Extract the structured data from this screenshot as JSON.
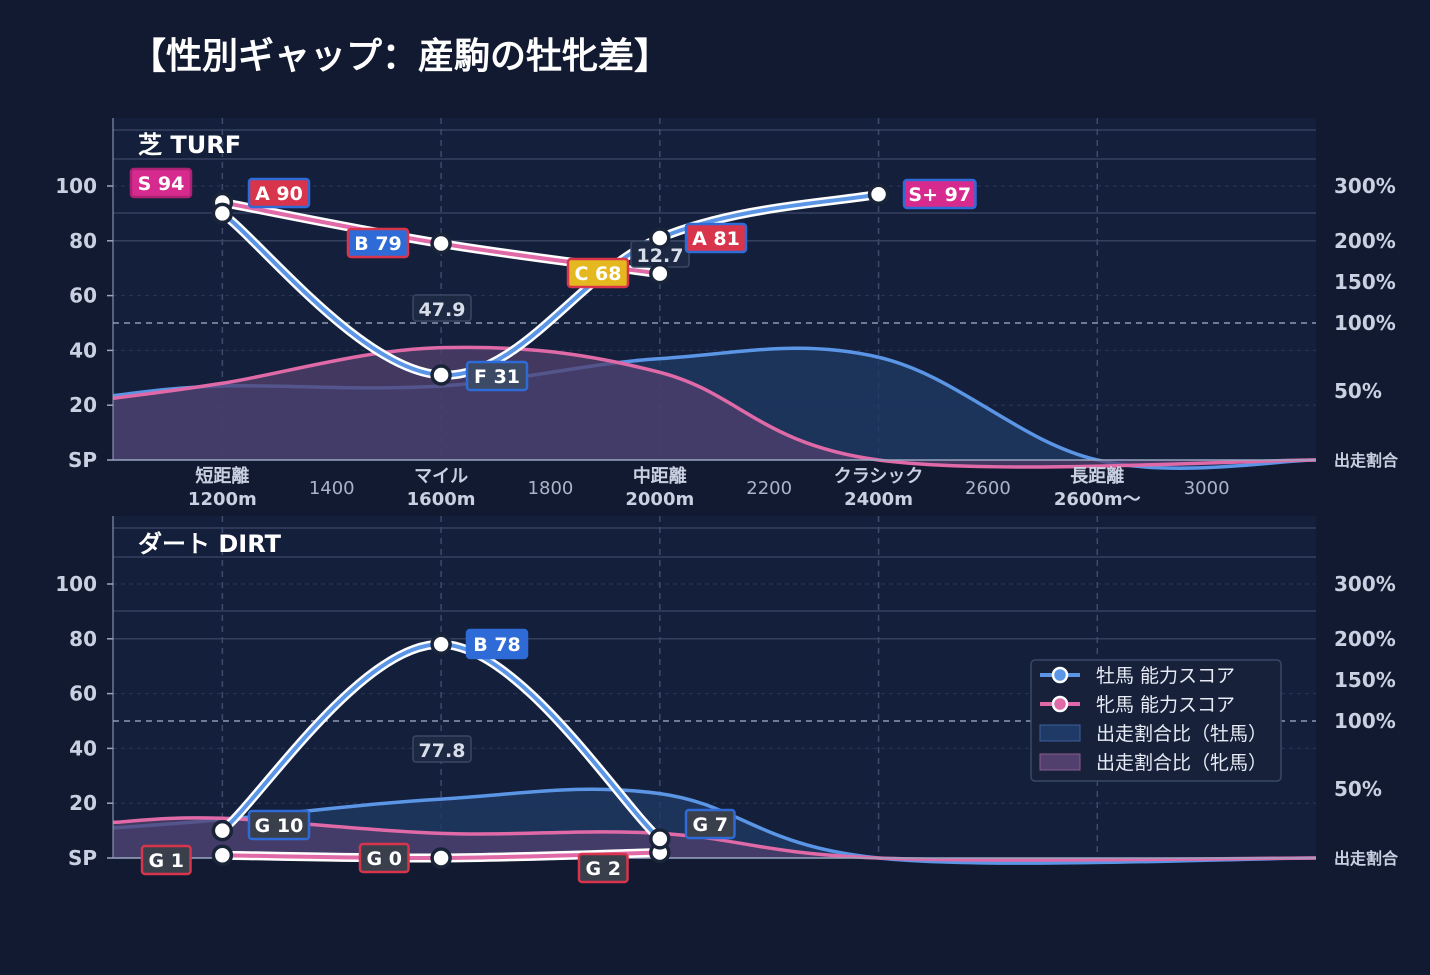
{
  "title": "【性別ギャップ：産駒の牡牝差】",
  "colors": {
    "background": "#111a30",
    "panel": "#14203b",
    "male_line": "#5b95e6",
    "female_line": "#e06aa8",
    "male_area": "#1f3a66",
    "female_area": "#51406e",
    "rank_S": "#d62a8f",
    "rank_A": "#d8344c",
    "rank_B": "#2e6bd6",
    "rank_C": "#e6b820",
    "rank_F": "#3c4a66",
    "rank_G": "#3a3f4c"
  },
  "x_categories": [
    {
      "top": "短距離",
      "bottom": "1200m"
    },
    {
      "top": "マイル",
      "bottom": "1600m"
    },
    {
      "top": "中距離",
      "bottom": "2000m"
    },
    {
      "top": "クラシック",
      "bottom": "2400m"
    },
    {
      "top": "長距離",
      "bottom": "2600m〜"
    }
  ],
  "x_minor_ticks": [
    "1400",
    "1800",
    "2200",
    "2600",
    "3000"
  ],
  "y_ticks": [
    "SP",
    "20",
    "40",
    "60",
    "80",
    "100"
  ],
  "right_ticks": [
    "50%",
    "100%",
    "150%",
    "200%",
    "300%"
  ],
  "right_axis_label": "出走割合",
  "legend": {
    "male_score": "牡馬 能力スコア",
    "female_score": "牝馬 能力スコア",
    "male_ratio": "出走割合比（牡馬）",
    "female_ratio": "出走割合比（牝馬）"
  },
  "chart_data": [
    {
      "type": "line",
      "title": "芝 TURF",
      "x": [
        1200,
        1600,
        2000,
        2400
      ],
      "ylim": [
        0,
        100
      ],
      "series": [
        {
          "name": "牡馬 能力スコア",
          "values": [
            90,
            31,
            81,
            97
          ],
          "labels": [
            "",
            "F 31",
            "A 81",
            "S+ 97"
          ]
        },
        {
          "name": "牝馬 能力スコア",
          "values": [
            94,
            79,
            68,
            null
          ],
          "labels": [
            "S 94",
            "B 79",
            "C 68",
            ""
          ]
        }
      ],
      "gap_labels": [
        "A 90",
        "47.9",
        "12.7"
      ],
      "ratio_area": {
        "male": [
          [
            1000,
            47
          ],
          [
            1200,
            54
          ],
          [
            1600,
            54
          ],
          [
            2000,
            74
          ],
          [
            2400,
            75
          ],
          [
            2800,
            0
          ],
          [
            3200,
            0
          ]
        ],
        "female": [
          [
            1000,
            45
          ],
          [
            1200,
            56
          ],
          [
            1600,
            82
          ],
          [
            2000,
            64
          ],
          [
            2400,
            0
          ],
          [
            3200,
            0
          ]
        ]
      }
    },
    {
      "type": "line",
      "title": "ダート DIRT",
      "x": [
        1200,
        1600,
        2000
      ],
      "ylim": [
        0,
        100
      ],
      "series": [
        {
          "name": "牡馬 能力スコア",
          "values": [
            10,
            78,
            7
          ],
          "labels": [
            "G 10",
            "B 78",
            "G 7"
          ]
        },
        {
          "name": "牝馬 能力スコア",
          "values": [
            1,
            0,
            2
          ],
          "labels": [
            "G 1",
            "G 0",
            "G 2"
          ]
        }
      ],
      "gap_labels": [
        "77.8"
      ],
      "ratio_area": {
        "male": [
          [
            1000,
            22
          ],
          [
            1200,
            28
          ],
          [
            1600,
            43
          ],
          [
            2000,
            47
          ],
          [
            2400,
            0
          ],
          [
            3200,
            0
          ]
        ],
        "female": [
          [
            1000,
            26
          ],
          [
            1200,
            29
          ],
          [
            1600,
            18
          ],
          [
            2000,
            18
          ],
          [
            2400,
            0
          ],
          [
            3200,
            0
          ]
        ]
      }
    }
  ]
}
